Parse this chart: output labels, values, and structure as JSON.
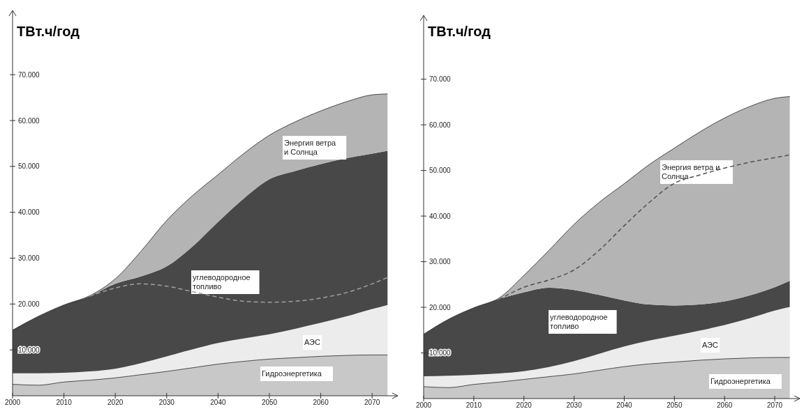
{
  "chart_data": [
    {
      "type": "area",
      "stacked": true,
      "ylabel": "ТВт.ч/год",
      "x": [
        2000,
        2005,
        2010,
        2015,
        2020,
        2025,
        2030,
        2035,
        2040,
        2045,
        2050,
        2055,
        2060,
        2065,
        2070,
        2073
      ],
      "xlim": [
        2000,
        2075
      ],
      "ylim": [
        0,
        84000
      ],
      "xticks": [
        2000,
        2010,
        2020,
        2030,
        2040,
        2050,
        2060,
        2070
      ],
      "yticks": [
        {
          "value": 10000,
          "label": "10.000"
        },
        {
          "value": 20000,
          "label": "20.000"
        },
        {
          "value": 30000,
          "label": "30.000"
        },
        {
          "value": 40000,
          "label": "40.000"
        },
        {
          "value": 50000,
          "label": "50.000"
        },
        {
          "value": 60000,
          "label": "60.000"
        },
        {
          "value": 70000,
          "label": "70.000"
        }
      ],
      "series": [
        {
          "name": "Гидроэнергетика",
          "color": "#c8c8c8",
          "values": [
            2500,
            2300,
            3000,
            3400,
            3900,
            4600,
            5300,
            6100,
            6900,
            7500,
            8000,
            8300,
            8600,
            8800,
            8900,
            8900
          ]
        },
        {
          "name": "АЭС",
          "color": "#ececec",
          "values": [
            2400,
            2600,
            2000,
            1900,
            2000,
            2500,
            3300,
            4000,
            4600,
            5000,
            5400,
            6300,
            7300,
            8500,
            10000,
            10900
          ]
        },
        {
          "name": "углеводородное\nтопливо",
          "color": "#484848",
          "values": [
            9400,
            12400,
            14800,
            16400,
            18500,
            18900,
            19600,
            22400,
            26400,
            30500,
            33800,
            34400,
            34600,
            34500,
            33900,
            33600
          ]
        },
        {
          "name": "Энергия ветра\nи Солнца",
          "color": "#b4b4b4",
          "values": [
            0,
            0,
            0,
            100,
            1100,
            5500,
            10000,
            11100,
            10300,
            9800,
            9600,
            10700,
            11600,
            12300,
            12800,
            12400
          ]
        },
        {
          "type": "line",
          "line_style": "dashed",
          "color": "#a0a0a0",
          "x": [
            2015,
            2020,
            2025,
            2030,
            2035,
            2040,
            2045,
            2050,
            2055,
            2060,
            2065,
            2070,
            2073
          ],
          "values": [
            21700,
            23500,
            24400,
            23900,
            22700,
            21500,
            20600,
            20400,
            20600,
            21300,
            22500,
            24400,
            25800
          ]
        }
      ]
    },
    {
      "type": "area",
      "stacked": true,
      "ylabel": "ТВт.ч/год",
      "x": [
        2000,
        2005,
        2010,
        2015,
        2020,
        2025,
        2030,
        2035,
        2040,
        2045,
        2050,
        2055,
        2060,
        2065,
        2070,
        2073
      ],
      "xlim": [
        2000,
        2075
      ],
      "ylim": [
        0,
        84000
      ],
      "xticks": [
        2000,
        2010,
        2020,
        2030,
        2040,
        2050,
        2060,
        2070
      ],
      "yticks": [
        {
          "value": 10000,
          "label": "10.000"
        },
        {
          "value": 20000,
          "label": "20.000"
        },
        {
          "value": 30000,
          "label": "30.000"
        },
        {
          "value": 40000,
          "label": "40.000"
        },
        {
          "value": 50000,
          "label": "50.000"
        },
        {
          "value": 60000,
          "label": "60.000"
        },
        {
          "value": 70000,
          "label": "70.000"
        }
      ],
      "series": [
        {
          "name": "Гидроэнергетика",
          "color": "#c8c8c8",
          "values": [
            2600,
            2400,
            3100,
            3600,
            4200,
            4800,
            5400,
            6200,
            7000,
            7600,
            8000,
            8400,
            8700,
            8900,
            9000,
            9000
          ]
        },
        {
          "name": "АЭС",
          "color": "#ececec",
          "values": [
            2300,
            2600,
            2100,
            1900,
            1800,
            2100,
            2800,
            3600,
            4400,
            5100,
            5800,
            6500,
            7400,
            8700,
            10300,
            11100
          ]
        },
        {
          "name": "углеводородное\nтопливо",
          "color": "#484848",
          "values": [
            9200,
            12400,
            14700,
            16300,
            17300,
            17400,
            15600,
            12900,
            10100,
            7900,
            6600,
            5700,
            5200,
            5000,
            5100,
            5700
          ]
        },
        {
          "name": "Энергия ветра и\nСолнца",
          "color": "#b4b4b4",
          "values": [
            0,
            0,
            0,
            200,
            3700,
            8200,
            14400,
            20300,
            25600,
            30700,
            34500,
            37800,
            40200,
            41400,
            41400,
            40400
          ]
        },
        {
          "type": "line",
          "line_style": "dashed",
          "color": "#505050",
          "x": [
            2015,
            2020,
            2025,
            2030,
            2035,
            2040,
            2045,
            2050,
            2055,
            2060,
            2065,
            2070,
            2073
          ],
          "values": [
            21700,
            24400,
            26000,
            28200,
            32500,
            37900,
            43000,
            47200,
            49000,
            50500,
            51800,
            52800,
            53400
          ]
        }
      ]
    }
  ]
}
